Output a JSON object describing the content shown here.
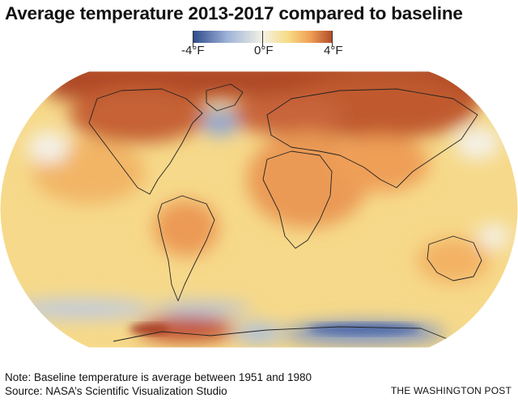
{
  "title": "Average temperature 2013-2017 compared to baseline",
  "legend": {
    "min_label": "-4°F",
    "mid_label": "0°F",
    "max_label": "4°F",
    "min_value": -4,
    "mid_value": 0,
    "max_value": 4,
    "unit": "°F",
    "colors": {
      "cold": "#2e4a8a",
      "cool": "#9fb3d8",
      "neutral": "#f3f1e4",
      "warm_light": "#f7dc86",
      "warm": "#f0a055",
      "hot": "#b04a28"
    }
  },
  "map": {
    "projection": "robinson-like world map",
    "ocean_color": "#f6d98a",
    "anomaly_regions": [
      {
        "name": "arctic",
        "anomaly": 4
      },
      {
        "name": "siberia",
        "anomaly": 3.5
      },
      {
        "name": "north-atlantic-cold-patch",
        "anomaly": -1.5
      },
      {
        "name": "canada",
        "anomaly": 3
      },
      {
        "name": "africa",
        "anomaly": 2
      },
      {
        "name": "south-america",
        "anomaly": 1.5
      },
      {
        "name": "australia",
        "anomaly": 1.2
      },
      {
        "name": "southern-ocean",
        "anomaly": -1
      },
      {
        "name": "west-antarctica",
        "anomaly": 2.5
      },
      {
        "name": "east-antarctica",
        "anomaly": -2
      }
    ]
  },
  "note": "Note: Baseline temperature is average between 1951 and 1980",
  "source": "Source: NASA’s Scientific Visualization Studio",
  "credit": "THE WASHINGTON POST"
}
